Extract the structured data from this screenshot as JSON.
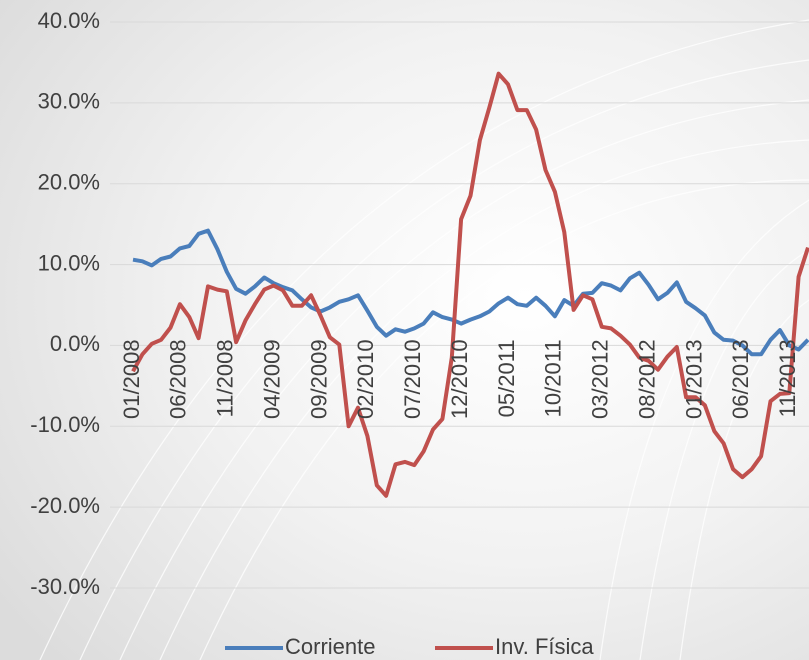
{
  "chart_data": {
    "type": "line",
    "categories": [
      "01/2008",
      null,
      null,
      null,
      null,
      "06/2008",
      null,
      null,
      null,
      null,
      "11/2008",
      null,
      null,
      null,
      null,
      "04/2009",
      null,
      null,
      null,
      null,
      "09/2009",
      null,
      null,
      null,
      null,
      "02/2010",
      null,
      null,
      null,
      null,
      "07/2010",
      null,
      null,
      null,
      null,
      "12/2010",
      null,
      null,
      null,
      null,
      "05/2011",
      null,
      null,
      null,
      null,
      "10/2011",
      null,
      null,
      null,
      null,
      "03/2012",
      null,
      null,
      null,
      null,
      "08/2012",
      null,
      null,
      null,
      null,
      "01/2013",
      null,
      null,
      null,
      null,
      "06/2013",
      null,
      null,
      null,
      null,
      "11/2013",
      null,
      null
    ],
    "series": [
      {
        "name": "Corriente",
        "color": "#4a7ebb",
        "values": [
          10.6,
          10.4,
          9.9,
          10.7,
          11.0,
          12.0,
          12.3,
          13.8,
          14.2,
          11.9,
          9.1,
          7.0,
          6.4,
          7.3,
          8.4,
          7.7,
          7.2,
          6.8,
          5.7,
          4.7,
          4.2,
          4.7,
          5.4,
          5.7,
          6.2,
          4.3,
          2.3,
          1.2,
          2.0,
          1.7,
          2.1,
          2.7,
          4.1,
          3.5,
          3.2,
          2.7,
          3.2,
          3.6,
          4.2,
          5.2,
          5.9,
          5.1,
          4.9,
          5.9,
          4.9,
          3.6,
          5.6,
          4.9,
          6.4,
          6.5,
          7.7,
          7.4,
          6.8,
          8.3,
          9.0,
          7.5,
          5.7,
          6.5,
          7.8,
          5.4,
          4.6,
          3.7,
          1.6,
          0.7,
          0.6,
          0.0,
          -1.1,
          -1.1,
          0.7,
          1.9,
          0.0,
          -0.5,
          0.7
        ]
      },
      {
        "name": "Inv. Física",
        "color": "#c0504d",
        "values": [
          -3.2,
          -1.1,
          0.2,
          0.7,
          2.2,
          5.1,
          3.5,
          0.9,
          7.3,
          6.9,
          6.7,
          0.4,
          3.1,
          5.1,
          6.9,
          7.4,
          6.8,
          4.9,
          4.9,
          6.2,
          3.7,
          1.0,
          0.1,
          -10.0,
          -7.7,
          -11.2,
          -17.3,
          -18.6,
          -14.7,
          -14.4,
          -14.8,
          -13.1,
          -10.4,
          -9.1,
          -1.5,
          15.6,
          18.5,
          25.4,
          29.4,
          33.6,
          32.3,
          29.1,
          29.1,
          26.7,
          21.7,
          19.0,
          14.0,
          4.4,
          6.2,
          5.7,
          2.3,
          2.1,
          1.2,
          0.1,
          -1.5,
          -1.9,
          -3.0,
          -1.4,
          -0.2,
          -6.4,
          -6.4,
          -7.4,
          -10.6,
          -12.1,
          -15.3,
          -16.3,
          -15.3,
          -13.7,
          -6.9,
          -6.0,
          -5.9,
          8.5,
          12.1
        ]
      }
    ],
    "ylim": [
      -30,
      40
    ],
    "yticks": [
      {
        "value": -30,
        "label": "-30.0%"
      },
      {
        "value": -20,
        "label": "-20.0%"
      },
      {
        "value": -10,
        "label": "-10.0%"
      },
      {
        "value": 0,
        "label": "0.0%"
      },
      {
        "value": 10,
        "label": "10.0%"
      },
      {
        "value": 20,
        "label": "20.0%"
      },
      {
        "value": 30,
        "label": "30.0%"
      },
      {
        "value": 40,
        "label": "40.0%"
      }
    ],
    "grid": true
  }
}
